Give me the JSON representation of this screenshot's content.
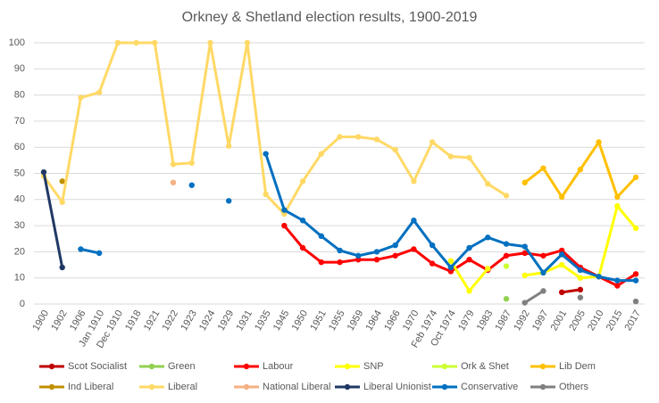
{
  "chart_data": {
    "type": "line",
    "title": "Orkney & Shetland election results, 1900-2019",
    "categories": [
      "1900",
      "1902",
      "1906",
      "Jan 1910",
      "Dec 1910",
      "1918",
      "1921",
      "1922",
      "1923",
      "1924",
      "1929",
      "1931",
      "1935",
      "1945",
      "1950",
      "1951",
      "1955",
      "1959",
      "1964",
      "1966",
      "1970",
      "Feb 1974",
      "Oct 1974",
      "1979",
      "1983",
      "1987",
      "1992",
      "1997",
      "2001",
      "2005",
      "2010",
      "2015",
      "2017"
    ],
    "ylim": [
      0,
      100
    ],
    "yticks": [
      0,
      10,
      20,
      30,
      40,
      50,
      60,
      70,
      80,
      90,
      100
    ],
    "grid": true,
    "series": [
      {
        "name": "Scot Socialist",
        "color": "#c00000",
        "values": [
          null,
          null,
          null,
          null,
          null,
          null,
          null,
          null,
          null,
          null,
          null,
          null,
          null,
          null,
          null,
          null,
          null,
          null,
          null,
          null,
          null,
          null,
          null,
          null,
          null,
          null,
          null,
          null,
          4.5,
          5.5,
          null,
          null,
          null
        ]
      },
      {
        "name": "Green",
        "color": "#92d050",
        "values": [
          null,
          null,
          null,
          null,
          null,
          null,
          null,
          null,
          null,
          null,
          null,
          null,
          null,
          null,
          null,
          null,
          null,
          null,
          null,
          null,
          null,
          null,
          null,
          null,
          null,
          2,
          null,
          null,
          null,
          null,
          null,
          null,
          null
        ]
      },
      {
        "name": "Labour",
        "color": "#ff0000",
        "values": [
          null,
          null,
          null,
          null,
          null,
          null,
          null,
          null,
          null,
          null,
          null,
          null,
          null,
          30,
          21.5,
          16,
          16,
          17,
          17,
          18.5,
          21,
          15.5,
          12.5,
          17,
          13,
          18.5,
          19.5,
          18.5,
          20.5,
          14,
          10.5,
          7,
          11.5
        ]
      },
      {
        "name": "SNP",
        "color": "#ffff00",
        "values": [
          null,
          null,
          null,
          null,
          null,
          null,
          null,
          null,
          null,
          null,
          null,
          null,
          null,
          null,
          null,
          null,
          null,
          null,
          null,
          null,
          null,
          null,
          16.5,
          5,
          13.5,
          null,
          11,
          12,
          15,
          10,
          10.5,
          37.5,
          29
        ]
      },
      {
        "name": "Ork & Shet",
        "color": "#ccff33",
        "values": [
          null,
          null,
          null,
          null,
          null,
          null,
          null,
          null,
          null,
          null,
          null,
          null,
          null,
          null,
          null,
          null,
          null,
          null,
          null,
          null,
          null,
          null,
          null,
          null,
          null,
          14.5,
          null,
          null,
          null,
          null,
          null,
          null,
          null
        ]
      },
      {
        "name": "Lib Dem",
        "color": "#ffc000",
        "values": [
          null,
          null,
          null,
          null,
          null,
          null,
          null,
          null,
          null,
          null,
          null,
          null,
          null,
          null,
          null,
          null,
          null,
          null,
          null,
          null,
          null,
          null,
          null,
          null,
          null,
          null,
          46.5,
          52,
          41,
          51.5,
          62,
          41,
          48.5
        ]
      },
      {
        "name": "Ind Liberal",
        "color": "#bf9000",
        "values": [
          null,
          47,
          null,
          null,
          null,
          null,
          null,
          null,
          null,
          null,
          null,
          null,
          null,
          null,
          null,
          null,
          null,
          null,
          null,
          null,
          null,
          null,
          null,
          null,
          null,
          null,
          null,
          null,
          null,
          null,
          null,
          null,
          null
        ]
      },
      {
        "name": "Liberal",
        "color": "#ffd966",
        "values": [
          49,
          39,
          79,
          81,
          100,
          100,
          100,
          53.5,
          54,
          100,
          60.5,
          100,
          42,
          34.5,
          47,
          57.5,
          64,
          64,
          63,
          59,
          47,
          62,
          56.5,
          56,
          46,
          41.5,
          null,
          null,
          null,
          null,
          null,
          null,
          null
        ]
      },
      {
        "name": "National Liberal",
        "color": "#f4b183",
        "values": [
          null,
          null,
          null,
          null,
          null,
          null,
          null,
          46.5,
          null,
          null,
          null,
          null,
          null,
          null,
          null,
          null,
          null,
          null,
          null,
          null,
          null,
          null,
          null,
          null,
          null,
          null,
          null,
          null,
          null,
          null,
          null,
          null,
          null
        ]
      },
      {
        "name": "Liberal Unionist",
        "color": "#203864",
        "values": [
          50.5,
          14,
          null,
          null,
          null,
          null,
          null,
          null,
          null,
          null,
          null,
          null,
          null,
          null,
          null,
          null,
          null,
          null,
          null,
          null,
          null,
          null,
          null,
          null,
          null,
          null,
          null,
          null,
          null,
          null,
          null,
          null,
          null
        ]
      },
      {
        "name": "Conservative",
        "color": "#0070c0",
        "values": [
          null,
          null,
          21,
          19.5,
          null,
          null,
          null,
          null,
          45.5,
          null,
          39.5,
          null,
          57.5,
          36,
          32,
          26,
          20.5,
          18.5,
          20,
          22.5,
          32,
          22.5,
          14,
          21.5,
          25.5,
          23,
          22,
          12,
          19,
          13,
          10.5,
          9,
          9
        ]
      },
      {
        "name": "Others",
        "color": "#808080",
        "values": [
          null,
          null,
          null,
          null,
          null,
          null,
          null,
          null,
          null,
          null,
          null,
          null,
          null,
          null,
          null,
          null,
          null,
          null,
          null,
          null,
          null,
          null,
          null,
          null,
          null,
          null,
          0.5,
          5,
          null,
          2.5,
          null,
          null,
          1
        ]
      }
    ]
  }
}
